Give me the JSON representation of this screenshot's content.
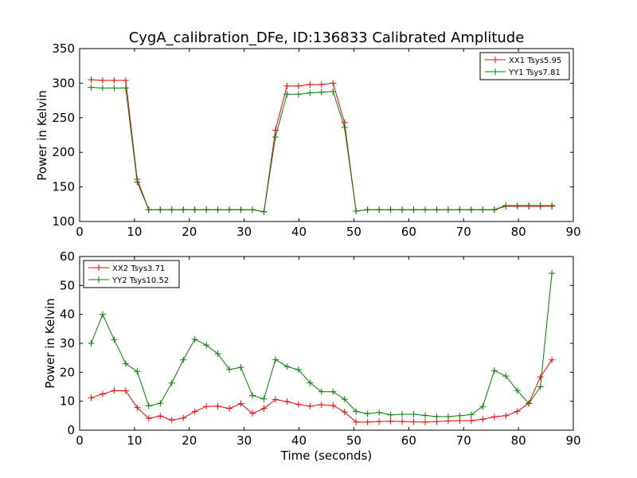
{
  "chart_data": [
    {
      "type": "line",
      "title": "CygA_calibration_DFe, ID:136833 Calibrated Amplitude",
      "xlabel": "",
      "ylabel": "Power in Kelvin",
      "xlim": [
        0,
        90
      ],
      "ylim": [
        100,
        350
      ],
      "xticks": [
        "0",
        "10",
        "20",
        "30",
        "40",
        "50",
        "60",
        "70",
        "80",
        "90"
      ],
      "yticks": [
        "100",
        "150",
        "200",
        "250",
        "300",
        "350"
      ],
      "grid": false,
      "legend_position": "top-right",
      "x": [
        2.1,
        4.2,
        6.3,
        8.4,
        10.5,
        12.6,
        14.7,
        16.8,
        18.9,
        21.0,
        23.1,
        25.2,
        27.3,
        29.4,
        31.5,
        33.6,
        35.7,
        37.8,
        39.9,
        42.0,
        44.1,
        46.2,
        48.3,
        50.4,
        52.5,
        54.6,
        56.7,
        58.8,
        60.9,
        63.0,
        65.1,
        67.2,
        69.3,
        71.4,
        73.5,
        75.6,
        77.7,
        79.8,
        81.9,
        84.0,
        86.1
      ],
      "series": [
        {
          "name": "XX1 Tsys5.95",
          "color": "#ff0000",
          "values": [
            305,
            304,
            304,
            304,
            161,
            117,
            117,
            117,
            117,
            117,
            117,
            117,
            117,
            117,
            117,
            114,
            232,
            296,
            296,
            298,
            298,
            300,
            243,
            115,
            117,
            117,
            117,
            117,
            117,
            117,
            117,
            117,
            117,
            117,
            117,
            117,
            122,
            122,
            122,
            122,
            122
          ]
        },
        {
          "name": "YY1 Tsys7.81",
          "color": "#008000",
          "values": [
            294,
            293,
            293,
            293,
            157,
            117,
            117,
            117,
            117,
            117,
            117,
            117,
            117,
            117,
            117,
            114,
            222,
            284,
            284,
            286,
            287,
            288,
            236,
            115,
            117,
            117,
            117,
            117,
            117,
            117,
            117,
            117,
            117,
            117,
            117,
            117,
            123,
            123,
            123,
            123,
            123
          ]
        }
      ]
    },
    {
      "type": "line",
      "title": "",
      "xlabel": "Time (seconds)",
      "ylabel": "Power in Kelvin",
      "xlim": [
        0,
        90
      ],
      "ylim": [
        0,
        60
      ],
      "xticks": [
        "0",
        "10",
        "20",
        "30",
        "40",
        "50",
        "60",
        "70",
        "80",
        "90"
      ],
      "yticks": [
        "0",
        "10",
        "20",
        "30",
        "40",
        "50",
        "60"
      ],
      "grid": false,
      "legend_position": "top-left",
      "x": [
        2.1,
        4.2,
        6.3,
        8.4,
        10.5,
        12.6,
        14.7,
        16.8,
        18.9,
        21.0,
        23.1,
        25.2,
        27.3,
        29.4,
        31.5,
        33.6,
        35.7,
        37.8,
        39.9,
        42.0,
        44.1,
        46.2,
        48.3,
        50.4,
        52.5,
        54.6,
        56.7,
        58.8,
        60.9,
        63.0,
        65.1,
        67.2,
        69.3,
        71.4,
        73.5,
        75.6,
        77.7,
        79.8,
        81.9,
        84.0,
        86.1
      ],
      "series": [
        {
          "name": "XX2 Tsys3.71",
          "color": "#ff0000",
          "values": [
            11.2,
            12.5,
            13.7,
            13.6,
            7.8,
            4.1,
            4.9,
            3.5,
            4.2,
            6.4,
            8.2,
            8.3,
            7.5,
            9.2,
            5.8,
            7.5,
            10.6,
            9.9,
            8.9,
            8.3,
            8.8,
            8.5,
            6.3,
            2.8,
            2.8,
            3.0,
            3.1,
            3.0,
            2.9,
            2.8,
            3.0,
            3.2,
            3.3,
            3.3,
            3.8,
            4.6,
            5.0,
            6.5,
            9.3,
            18.4,
            24.3
          ]
        },
        {
          "name": "YY2 Tsys10.52",
          "color": "#008000",
          "values": [
            30.0,
            40.0,
            31.3,
            23.0,
            20.3,
            8.4,
            9.3,
            16.3,
            24.3,
            31.4,
            29.4,
            26.4,
            21.0,
            21.7,
            12.0,
            10.8,
            24.4,
            22.0,
            20.9,
            16.4,
            13.3,
            13.3,
            10.7,
            6.5,
            5.7,
            6.1,
            5.3,
            5.5,
            5.5,
            5.1,
            4.7,
            4.7,
            5.0,
            5.4,
            8.2,
            20.6,
            18.7,
            13.7,
            9.2,
            15.0,
            54.2
          ]
        }
      ]
    }
  ]
}
